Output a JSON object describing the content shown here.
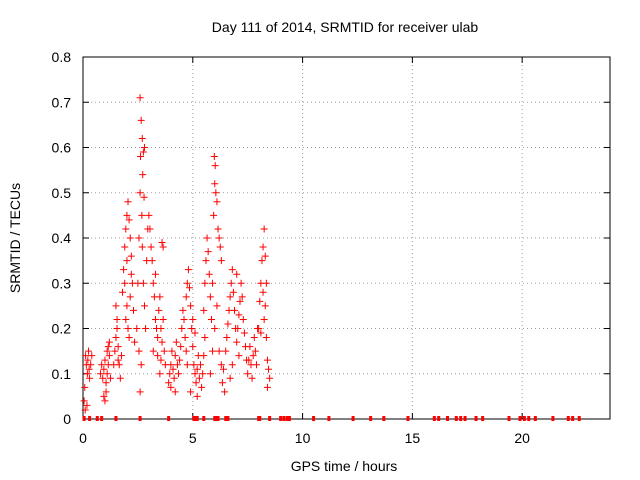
{
  "chart_data": {
    "type": "scatter",
    "title": "Day 111 of 2014, SRMTID for receiver ulab",
    "xlabel": "GPS time / hours",
    "ylabel": "SRMTID / TECUs",
    "xlim": [
      0,
      24
    ],
    "ylim": [
      0,
      0.8
    ],
    "xticks": [
      0,
      5,
      10,
      15,
      20
    ],
    "yticks": [
      0,
      0.1,
      0.2,
      0.3,
      0.4,
      0.5,
      0.6,
      0.7,
      0.8
    ],
    "grid": "dotted",
    "legend": "none",
    "marker": "plus",
    "color": "#ff0000",
    "series": [
      {
        "values": [
          [
            0.05,
            0.04
          ],
          [
            0.08,
            0.07
          ],
          [
            0.12,
            0.14
          ],
          [
            0.15,
            0.12
          ],
          [
            0.2,
            0.1
          ],
          [
            0.22,
            0.13
          ],
          [
            0.25,
            0.15
          ],
          [
            0.28,
            0.11
          ],
          [
            0.3,
            0.09
          ],
          [
            0.35,
            0.12
          ],
          [
            0.4,
            0.14
          ],
          [
            0.18,
            0.03
          ],
          [
            0.1,
            0.02
          ],
          [
            0.8,
            0.1
          ],
          [
            0.85,
            0.12
          ],
          [
            0.9,
            0.09
          ],
          [
            0.95,
            0.11
          ],
          [
            1.0,
            0.13
          ],
          [
            1.05,
            0.08
          ],
          [
            1.1,
            0.1
          ],
          [
            1.15,
            0.12
          ],
          [
            1.2,
            0.14
          ],
          [
            1.25,
            0.09
          ],
          [
            1.0,
            0.04
          ],
          [
            0.95,
            0.05
          ],
          [
            1.05,
            0.06
          ],
          [
            1.1,
            0.15
          ],
          [
            1.2,
            0.17
          ],
          [
            1.15,
            0.16
          ],
          [
            1.4,
            0.12
          ],
          [
            1.45,
            0.15
          ],
          [
            1.5,
            0.18
          ],
          [
            1.55,
            0.2
          ],
          [
            1.6,
            0.16
          ],
          [
            1.65,
            0.12
          ],
          [
            1.7,
            0.09
          ],
          [
            1.75,
            0.14
          ],
          [
            1.5,
            0.25
          ],
          [
            1.55,
            0.22
          ],
          [
            1.6,
            0.13
          ],
          [
            1.8,
            0.28
          ],
          [
            1.85,
            0.33
          ],
          [
            1.9,
            0.38
          ],
          [
            1.95,
            0.42
          ],
          [
            2.0,
            0.45
          ],
          [
            2.05,
            0.48
          ],
          [
            2.1,
            0.44
          ],
          [
            2.15,
            0.4
          ],
          [
            2.2,
            0.36
          ],
          [
            2.25,
            0.3
          ],
          [
            2.0,
            0.25
          ],
          [
            2.05,
            0.2
          ],
          [
            2.1,
            0.18
          ],
          [
            1.95,
            0.22
          ],
          [
            2.15,
            0.27
          ],
          [
            2.2,
            0.32
          ],
          [
            2.3,
            0.24
          ],
          [
            2.35,
            0.17
          ],
          [
            1.9,
            0.3
          ],
          [
            2.0,
            0.35
          ],
          [
            2.45,
            0.2
          ],
          [
            2.5,
            0.3
          ],
          [
            2.55,
            0.4
          ],
          [
            2.6,
            0.5
          ],
          [
            2.62,
            0.58
          ],
          [
            2.65,
            0.66
          ],
          [
            2.6,
            0.71
          ],
          [
            2.7,
            0.62
          ],
          [
            2.75,
            0.59
          ],
          [
            2.8,
            0.6
          ],
          [
            2.72,
            0.54
          ],
          [
            2.78,
            0.49
          ],
          [
            2.68,
            0.45
          ],
          [
            2.7,
            0.38
          ],
          [
            2.75,
            0.3
          ],
          [
            2.8,
            0.25
          ],
          [
            2.85,
            0.2
          ],
          [
            2.9,
            0.35
          ],
          [
            2.95,
            0.42
          ],
          [
            2.6,
            0.06
          ],
          [
            2.65,
            0.12
          ],
          [
            2.55,
            0.15
          ],
          [
            3.0,
            0.45
          ],
          [
            3.05,
            0.42
          ],
          [
            3.1,
            0.38
          ],
          [
            3.15,
            0.35
          ],
          [
            3.2,
            0.3
          ],
          [
            3.25,
            0.27
          ],
          [
            3.3,
            0.22
          ],
          [
            3.35,
            0.2
          ],
          [
            3.4,
            0.18
          ],
          [
            3.45,
            0.24
          ],
          [
            3.5,
            0.27
          ],
          [
            3.55,
            0.2
          ],
          [
            3.6,
            0.17
          ],
          [
            3.65,
            0.22
          ],
          [
            3.7,
            0.15
          ],
          [
            3.75,
            0.12
          ],
          [
            3.6,
            0.39
          ],
          [
            3.65,
            0.38
          ],
          [
            3.3,
            0.32
          ],
          [
            3.2,
            0.15
          ],
          [
            3.4,
            0.14
          ],
          [
            3.5,
            0.1
          ],
          [
            3.55,
            0.13
          ],
          [
            3.9,
            0.08
          ],
          [
            3.95,
            0.1
          ],
          [
            4.0,
            0.12
          ],
          [
            4.05,
            0.15
          ],
          [
            4.1,
            0.11
          ],
          [
            4.15,
            0.09
          ],
          [
            4.2,
            0.14
          ],
          [
            4.25,
            0.17
          ],
          [
            4.3,
            0.12
          ],
          [
            4.35,
            0.1
          ],
          [
            4.4,
            0.13
          ],
          [
            4.45,
            0.16
          ],
          [
            4.5,
            0.2
          ],
          [
            4.55,
            0.24
          ],
          [
            4.6,
            0.22
          ],
          [
            4.65,
            0.18
          ],
          [
            4.7,
            0.15
          ],
          [
            4.75,
            0.12
          ],
          [
            4.0,
            0.07
          ],
          [
            4.2,
            0.06
          ],
          [
            4.7,
            0.27
          ],
          [
            4.75,
            0.3
          ],
          [
            4.8,
            0.33
          ],
          [
            4.85,
            0.29
          ],
          [
            4.9,
            0.25
          ],
          [
            4.95,
            0.2
          ],
          [
            5.0,
            0.16
          ],
          [
            5.05,
            0.12
          ],
          [
            5.1,
            0.1
          ],
          [
            5.15,
            0.08
          ],
          [
            5.2,
            0.11
          ],
          [
            5.25,
            0.14
          ],
          [
            5.3,
            0.09
          ],
          [
            5.35,
            0.12
          ],
          [
            5.4,
            0.07
          ],
          [
            5.45,
            0.1
          ],
          [
            5.5,
            0.14
          ],
          [
            5.55,
            0.18
          ],
          [
            5.0,
            0.22
          ],
          [
            5.1,
            0.19
          ],
          [
            4.9,
            0.06
          ],
          [
            5.2,
            0.05
          ],
          [
            5.5,
            0.24
          ],
          [
            5.55,
            0.3
          ],
          [
            5.6,
            0.35
          ],
          [
            5.65,
            0.4
          ],
          [
            5.7,
            0.37
          ],
          [
            5.75,
            0.32
          ],
          [
            5.8,
            0.27
          ],
          [
            5.85,
            0.22
          ],
          [
            5.9,
            0.3
          ],
          [
            5.95,
            0.45
          ],
          [
            6.0,
            0.52
          ],
          [
            6.02,
            0.56
          ],
          [
            5.98,
            0.58
          ],
          [
            6.05,
            0.5
          ],
          [
            6.1,
            0.48
          ],
          [
            6.15,
            0.42
          ],
          [
            6.2,
            0.4
          ],
          [
            6.25,
            0.38
          ],
          [
            6.3,
            0.35
          ],
          [
            6.1,
            0.25
          ],
          [
            6.0,
            0.2
          ],
          [
            6.2,
            0.15
          ],
          [
            6.3,
            0.12
          ],
          [
            6.35,
            0.08
          ],
          [
            6.4,
            0.11
          ],
          [
            6.45,
            0.06
          ],
          [
            5.9,
            0.15
          ],
          [
            5.8,
            0.1
          ],
          [
            6.5,
            0.15
          ],
          [
            6.55,
            0.18
          ],
          [
            6.6,
            0.21
          ],
          [
            6.65,
            0.24
          ],
          [
            6.7,
            0.27
          ],
          [
            6.75,
            0.3
          ],
          [
            6.8,
            0.33
          ],
          [
            6.85,
            0.28
          ],
          [
            6.9,
            0.24
          ],
          [
            6.95,
            0.2
          ],
          [
            7.0,
            0.17
          ],
          [
            7.05,
            0.2
          ],
          [
            7.1,
            0.23
          ],
          [
            7.15,
            0.26
          ],
          [
            7.2,
            0.3
          ],
          [
            7.25,
            0.27
          ],
          [
            7.3,
            0.22
          ],
          [
            7.35,
            0.19
          ],
          [
            7.4,
            0.16
          ],
          [
            7.45,
            0.13
          ],
          [
            7.5,
            0.1
          ],
          [
            7.55,
            0.13
          ],
          [
            7.6,
            0.16
          ],
          [
            7.65,
            0.12
          ],
          [
            7.7,
            0.09
          ],
          [
            7.75,
            0.14
          ],
          [
            7.8,
            0.18
          ],
          [
            7.85,
            0.15
          ],
          [
            7.9,
            0.12
          ],
          [
            7.95,
            0.2
          ],
          [
            6.7,
            0.09
          ],
          [
            6.8,
            0.12
          ],
          [
            7.0,
            0.32
          ],
          [
            7.1,
            0.14
          ],
          [
            8.0,
            0.2
          ],
          [
            8.05,
            0.26
          ],
          [
            8.1,
            0.3
          ],
          [
            8.15,
            0.35
          ],
          [
            8.2,
            0.38
          ],
          [
            8.25,
            0.42
          ],
          [
            8.3,
            0.36
          ],
          [
            8.35,
            0.3
          ],
          [
            8.3,
            0.25
          ],
          [
            8.25,
            0.22
          ],
          [
            8.35,
            0.18
          ],
          [
            8.4,
            0.13
          ],
          [
            8.45,
            0.11
          ],
          [
            8.5,
            0.09
          ],
          [
            8.4,
            0.07
          ],
          [
            8.2,
            0.28
          ],
          [
            8.1,
            0.19
          ]
        ]
      }
    ],
    "rug_x": [
      0.05,
      0.3,
      0.65,
      0.85,
      1.5,
      2.6,
      3.9,
      5.05,
      5.1,
      5.2,
      5.5,
      6.0,
      6.1,
      6.15,
      6.5,
      6.6,
      8.0,
      8.05,
      8.5,
      9.0,
      9.15,
      9.3,
      9.4,
      10.5,
      11.2,
      12.3,
      13.1,
      13.7,
      14.8,
      16.0,
      16.2,
      16.6,
      17.0,
      17.2,
      17.4,
      17.9,
      18.2,
      19.4,
      19.9,
      20.1,
      20.3,
      20.6,
      21.4,
      22.1,
      22.3,
      22.6
    ]
  }
}
